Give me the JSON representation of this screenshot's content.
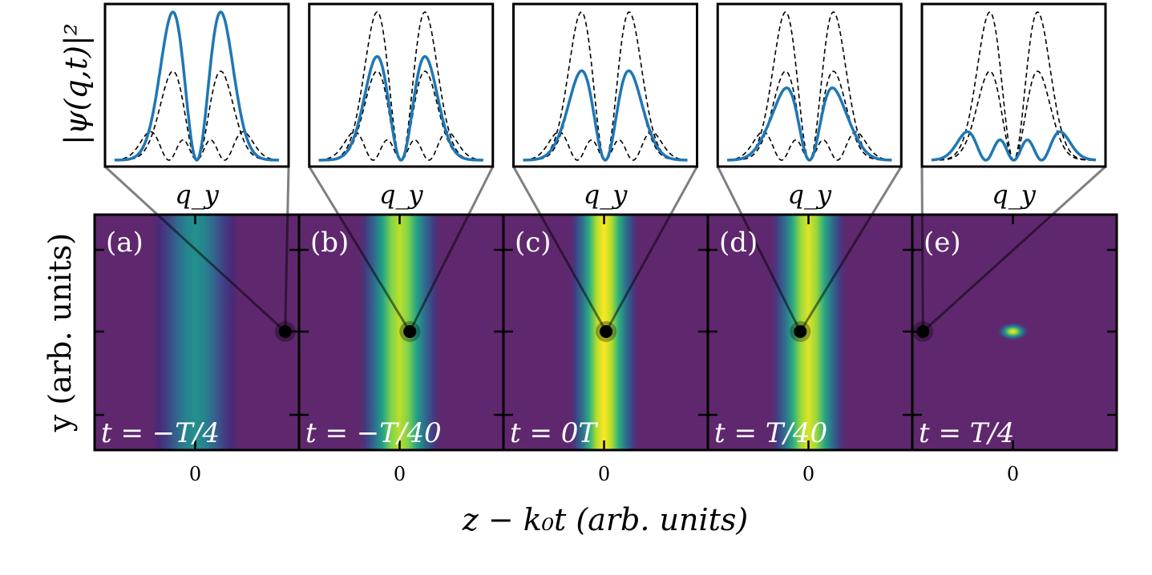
{
  "chart_data": {
    "type": "heatmap",
    "xlabel": "z − k₀t (arb. units)",
    "ylabel": "y (arb. units)",
    "inset_ylabel": "|ψ(q,t)|²",
    "inset_xlabel": "q_y",
    "background_color": "#5f286e",
    "line_color": "#1f77b4",
    "panels": [
      {
        "label": "(a)",
        "time": "t = −T/4",
        "xtick": "0",
        "blob": {
          "cx": 0,
          "sx": 0.28,
          "sy": 9,
          "peak": 0.45
        },
        "probe": {
          "z": 0.88,
          "y": 0
        },
        "blue": {
          "two_lobe": 1.0,
          "four_lobe": 0.0
        }
      },
      {
        "label": "(b)",
        "time": "t = −T/40",
        "xtick": "0",
        "blob": {
          "cx": 0.0,
          "sx": 0.26,
          "sy": 0.75,
          "peak": 0.85
        },
        "probe": {
          "z": 0.1,
          "y": 0
        },
        "blue": {
          "two_lobe": 0.7,
          "four_lobe": 0.0
        }
      },
      {
        "label": "(c)",
        "time": "t = 0T",
        "xtick": "0",
        "blob": {
          "cx": 0,
          "sx": 0.22,
          "sy": 0.7,
          "peak": 0.95
        },
        "probe": {
          "z": 0.02,
          "y": 0
        },
        "blue": {
          "two_lobe": 0.6,
          "four_lobe": 0.03
        }
      },
      {
        "label": "(d)",
        "time": "t = T/40",
        "xtick": "0",
        "blob": {
          "cx": 0.0,
          "sx": 0.24,
          "sy": 0.72,
          "peak": 0.9
        },
        "probe": {
          "z": -0.08,
          "y": 0
        },
        "blue": {
          "two_lobe": 0.48,
          "four_lobe": 0.06
        }
      },
      {
        "label": "(e)",
        "time": "t = T/4",
        "xtick": "0",
        "blob": {
          "cx": 0,
          "sx": 0.1,
          "sy": 0.05,
          "peak": 0.95
        },
        "probe": {
          "z": -0.88,
          "y": 0
        },
        "blue": {
          "two_lobe": 0.0,
          "four_lobe": 0.23
        }
      }
    ],
    "reference_dashed": {
      "two_lobe_heights": [
        1.0,
        0.6
      ],
      "four_lobe_height": 0.23
    }
  }
}
